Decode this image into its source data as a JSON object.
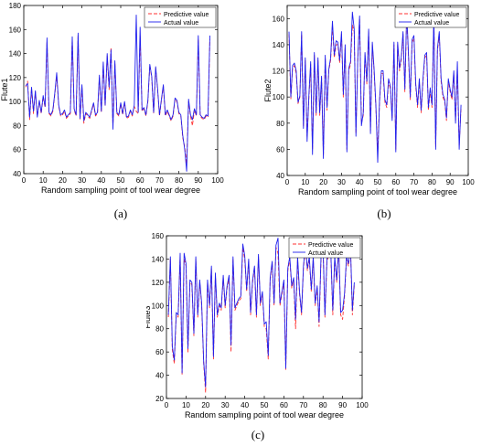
{
  "colors": {
    "predictive": "#ff3030",
    "actual": "#2020ee",
    "axis": "#000000"
  },
  "chart_data": [
    {
      "type": "line",
      "panel_label": "(a)",
      "xlabel": "Random sampling point of tool wear degree",
      "ylabel": "Flute1",
      "xlim": [
        0,
        100
      ],
      "ylim": [
        40,
        180
      ],
      "xticks": [
        0,
        10,
        20,
        30,
        40,
        50,
        60,
        70,
        80,
        90,
        100
      ],
      "yticks": [
        40,
        60,
        80,
        100,
        120,
        140,
        160,
        180
      ],
      "legend": {
        "position": "top-right"
      },
      "grid": false,
      "x": [
        1,
        2,
        3,
        4,
        5,
        6,
        7,
        8,
        9,
        10,
        11,
        12,
        13,
        14,
        15,
        16,
        17,
        18,
        19,
        20,
        21,
        22,
        23,
        24,
        25,
        26,
        27,
        28,
        29,
        30,
        31,
        32,
        33,
        34,
        35,
        36,
        37,
        38,
        39,
        40,
        41,
        42,
        43,
        44,
        45,
        46,
        47,
        48,
        49,
        50,
        51,
        52,
        53,
        54,
        55,
        56,
        57,
        58,
        59,
        60,
        61,
        62,
        63,
        64,
        65,
        66,
        67,
        68,
        69,
        70,
        71,
        72,
        73,
        74,
        75,
        76,
        77,
        78,
        79,
        80,
        81,
        82,
        83,
        84,
        85,
        86,
        87,
        88,
        89,
        90,
        91,
        92,
        93,
        94,
        95,
        96
      ],
      "series": [
        {
          "name": "Predictive value",
          "style": "dashed",
          "values": [
            112,
            117,
            85,
            111,
            90,
            108,
            88,
            100,
            90,
            104,
            95,
            150,
            90,
            88,
            92,
            106,
            122,
            96,
            88,
            89,
            92,
            86,
            88,
            90,
            152,
            93,
            88,
            155,
            85,
            112,
            82,
            90,
            88,
            86,
            92,
            98,
            88,
            90,
            120,
            91,
            130,
            96,
            138,
            110,
            145,
            79,
            132,
            90,
            88,
            98,
            89,
            99,
            86,
            87,
            92,
            88,
            96,
            92,
            90,
            155,
            92,
            94,
            88,
            100,
            130,
            120,
            90,
            128,
            110,
            88,
            101,
            113,
            88,
            92,
            88,
            84,
            88,
            102,
            100,
            90,
            88,
            70,
            62,
            48,
            100,
            88,
            80,
            93,
            88,
            152,
            88,
            86,
            85,
            88,
            87,
            152
          ]
        },
        {
          "name": "Actual value",
          "style": "solid",
          "values": [
            113,
            115,
            87,
            112,
            92,
            109,
            87,
            101,
            91,
            105,
            96,
            153,
            91,
            89,
            93,
            107,
            124,
            97,
            89,
            90,
            93,
            87,
            89,
            91,
            154,
            94,
            89,
            157,
            86,
            114,
            84,
            91,
            89,
            87,
            93,
            99,
            89,
            91,
            122,
            92,
            133,
            97,
            140,
            112,
            143,
            77,
            134,
            91,
            89,
            99,
            90,
            100,
            87,
            88,
            93,
            89,
            97,
            172,
            91,
            162,
            93,
            95,
            89,
            101,
            131,
            121,
            91,
            129,
            111,
            89,
            102,
            114,
            89,
            93,
            89,
            85,
            89,
            103,
            101,
            91,
            89,
            72,
            60,
            42,
            102,
            89,
            85,
            94,
            89,
            155,
            89,
            87,
            86,
            89,
            88,
            155
          ]
        }
      ]
    },
    {
      "type": "line",
      "panel_label": "(b)",
      "xlabel": "Random sampling point of tool wear degree",
      "ylabel": "Flute2",
      "xlim": [
        0,
        100
      ],
      "ylim": [
        40,
        170
      ],
      "xticks": [
        0,
        10,
        20,
        30,
        40,
        50,
        60,
        70,
        80,
        90,
        100
      ],
      "yticks": [
        40,
        60,
        80,
        100,
        120,
        140,
        160
      ],
      "legend": {
        "position": "top-right"
      },
      "grid": false,
      "x": [
        1,
        2,
        3,
        4,
        5,
        6,
        7,
        8,
        9,
        10,
        11,
        12,
        13,
        14,
        15,
        16,
        17,
        18,
        19,
        20,
        21,
        22,
        23,
        24,
        25,
        26,
        27,
        28,
        29,
        30,
        31,
        32,
        33,
        34,
        35,
        36,
        37,
        38,
        39,
        40,
        41,
        42,
        43,
        44,
        45,
        46,
        47,
        48,
        49,
        50,
        51,
        52,
        53,
        54,
        55,
        56,
        57,
        58,
        59,
        60,
        61,
        62,
        63,
        64,
        65,
        66,
        67,
        68,
        69,
        70,
        71,
        72,
        73,
        74,
        75,
        76,
        77,
        78,
        79,
        80,
        81,
        82,
        83,
        84,
        85,
        86,
        87,
        88,
        89,
        90,
        91,
        92,
        93,
        94,
        95,
        96
      ],
      "series": [
        {
          "name": "Predictive value",
          "style": "dashed",
          "values": [
            148,
            98,
            122,
            124,
            118,
            95,
            100,
            148,
            78,
            128,
            70,
            100,
            125,
            60,
            132,
            86,
            128,
            86,
            115,
            56,
            130,
            90,
            120,
            128,
            155,
            130,
            140,
            140,
            126,
            148,
            100,
            138,
            60,
            120,
            125,
            155,
            150,
            72,
            128,
            160,
            80,
            86,
            132,
            110,
            150,
            74,
            140,
            120,
            92,
            58,
            96,
            118,
            118,
            96,
            92,
            112,
            106,
            84,
            140,
            60,
            140,
            120,
            128,
            148,
            104,
            162,
            130,
            98,
            142,
            145,
            108,
            92,
            112,
            88,
            112,
            130,
            132,
            90,
            105,
            92,
            160,
            62,
            135,
            148,
            112,
            100,
            96,
            82,
            112,
            104,
            98,
            118,
            82,
            120,
            63,
            92
          ]
        },
        {
          "name": "Actual value",
          "style": "solid",
          "values": [
            150,
            100,
            124,
            126,
            120,
            96,
            101,
            150,
            76,
            130,
            66,
            102,
            127,
            56,
            134,
            88,
            130,
            88,
            116,
            53,
            132,
            92,
            121,
            130,
            158,
            132,
            143,
            142,
            128,
            150,
            102,
            140,
            58,
            122,
            127,
            165,
            152,
            70,
            130,
            162,
            78,
            88,
            134,
            112,
            152,
            72,
            142,
            122,
            94,
            50,
            98,
            120,
            120,
            98,
            94,
            114,
            108,
            82,
            142,
            58,
            142,
            122,
            130,
            150,
            106,
            165,
            132,
            100,
            144,
            147,
            110,
            94,
            114,
            90,
            114,
            132,
            134,
            92,
            107,
            94,
            162,
            60,
            137,
            150,
            114,
            102,
            98,
            84,
            114,
            106,
            100,
            120,
            80,
            127,
            60,
            94
          ]
        }
      ]
    },
    {
      "type": "line",
      "panel_label": "(c)",
      "xlabel": "Random sampling point of tool wear degree",
      "ylabel": "Flute3",
      "xlim": [
        0,
        100
      ],
      "ylim": [
        20,
        160
      ],
      "xticks": [
        0,
        10,
        20,
        30,
        40,
        50,
        60,
        70,
        80,
        90,
        100
      ],
      "yticks": [
        20,
        40,
        60,
        80,
        100,
        120,
        140,
        160
      ],
      "legend": {
        "position": "top-right"
      },
      "grid": false,
      "x": [
        1,
        2,
        3,
        4,
        5,
        6,
        7,
        8,
        9,
        10,
        11,
        12,
        13,
        14,
        15,
        16,
        17,
        18,
        19,
        20,
        21,
        22,
        23,
        24,
        25,
        26,
        27,
        28,
        29,
        30,
        31,
        32,
        33,
        34,
        35,
        36,
        37,
        38,
        39,
        40,
        41,
        42,
        43,
        44,
        45,
        46,
        47,
        48,
        49,
        50,
        51,
        52,
        53,
        54,
        55,
        56,
        57,
        58,
        59,
        60,
        61,
        62,
        63,
        64,
        65,
        66,
        67,
        68,
        69,
        70,
        71,
        72,
        73,
        74,
        75,
        76,
        77,
        78,
        79,
        80,
        81,
        82,
        83,
        84,
        85,
        86,
        87,
        88,
        89,
        90,
        91,
        92,
        93,
        94,
        95,
        96
      ],
      "series": [
        {
          "name": "Predictive value",
          "style": "dashed",
          "values": [
            90,
            140,
            62,
            50,
            92,
            90,
            142,
            40,
            140,
            134,
            60,
            120,
            118,
            74,
            140,
            90,
            120,
            100,
            50,
            25,
            120,
            98,
            132,
            54,
            126,
            90,
            100,
            96,
            124,
            98,
            115,
            124,
            60,
            140,
            96,
            100,
            104,
            106,
            150,
            140,
            112,
            138,
            92,
            120,
            132,
            90,
            142,
            100,
            110,
            82,
            80,
            54,
            122,
            136,
            100,
            150,
            145,
            100,
            110,
            120,
            45,
            130,
            140,
            115,
            122,
            80,
            140,
            110,
            92,
            132,
            150,
            130,
            140,
            112,
            140,
            100,
            115,
            82,
            142,
            150,
            90,
            138,
            144,
            142,
            92,
            140,
            120,
            150,
            92,
            88,
            108,
            140,
            134,
            150,
            92,
            118
          ]
        },
        {
          "name": "Actual value",
          "style": "solid",
          "values": [
            92,
            142,
            65,
            53,
            94,
            92,
            145,
            42,
            145,
            136,
            63,
            122,
            120,
            76,
            142,
            92,
            122,
            102,
            52,
            30,
            122,
            100,
            134,
            56,
            128,
            92,
            102,
            98,
            126,
            100,
            117,
            126,
            66,
            142,
            98,
            102,
            106,
            108,
            153,
            143,
            114,
            140,
            94,
            122,
            134,
            92,
            144,
            102,
            112,
            84,
            86,
            57,
            124,
            138,
            102,
            152,
            158,
            102,
            112,
            122,
            46,
            132,
            142,
            117,
            124,
            88,
            142,
            112,
            94,
            134,
            152,
            132,
            142,
            114,
            142,
            102,
            117,
            86,
            144,
            152,
            92,
            140,
            146,
            144,
            96,
            142,
            122,
            152,
            94,
            96,
            110,
            142,
            136,
            152,
            96,
            120
          ]
        }
      ]
    }
  ]
}
